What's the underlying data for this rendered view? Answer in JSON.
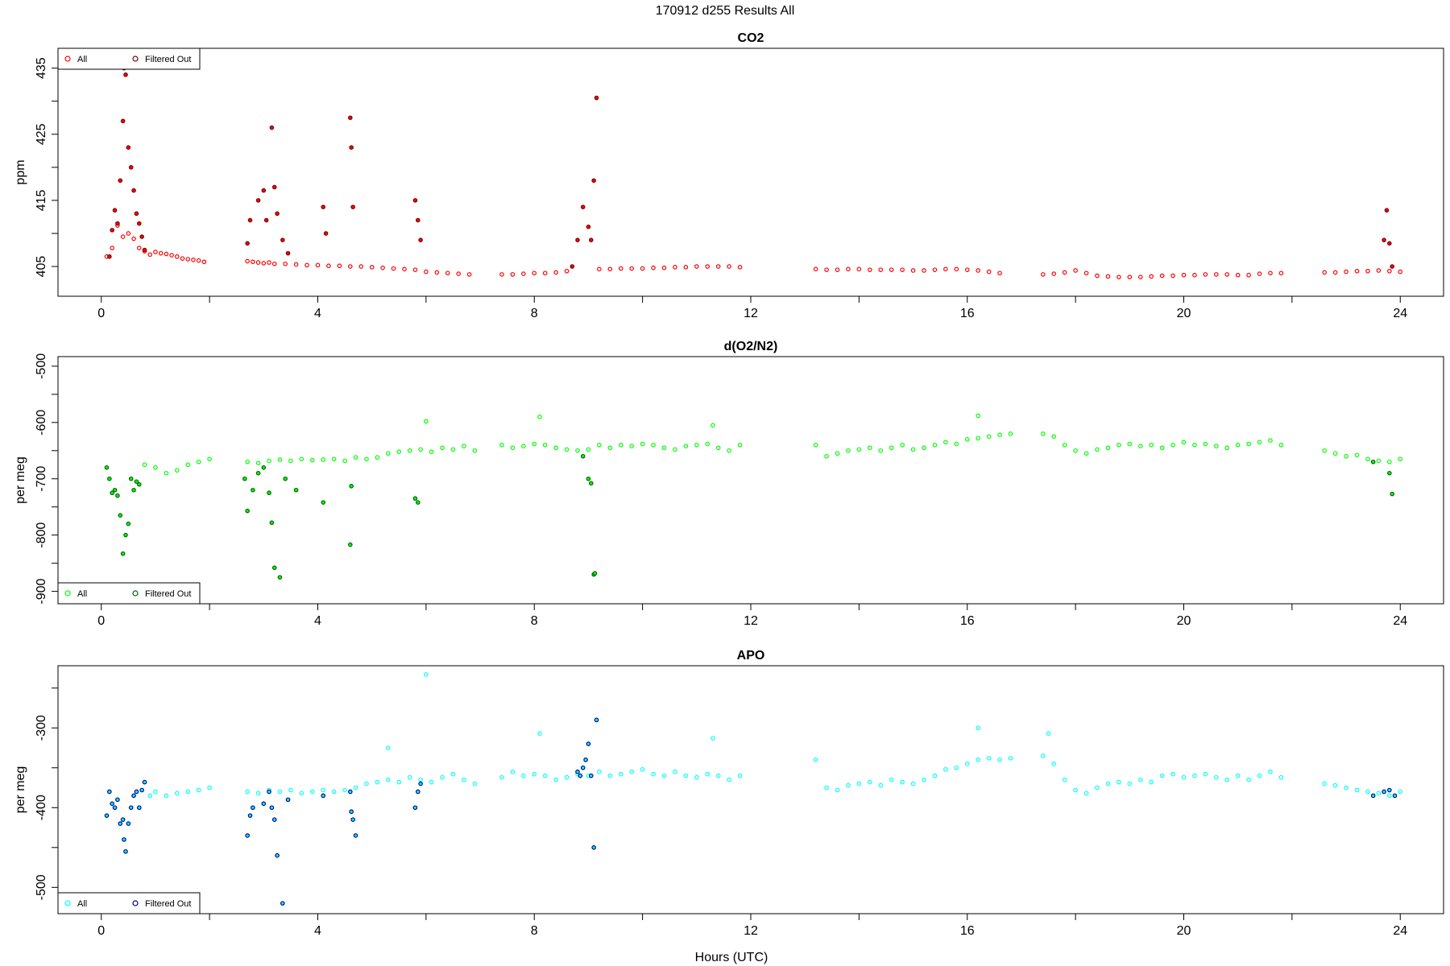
{
  "page": {
    "title": "170912   d255   Results All"
  },
  "xaxis": {
    "label": "Hours (UTC)",
    "range": [
      0,
      24
    ],
    "ticks": [
      "0",
      "4",
      "8",
      "12",
      "16",
      "20",
      "24"
    ]
  },
  "chart_data": [
    {
      "type": "scatter",
      "title": "CO2",
      "ylabel": "ppm",
      "xlim": [
        -0.8,
        24.8
      ],
      "ylim": [
        400.5,
        438
      ],
      "yticks": [
        405,
        415,
        425,
        435
      ],
      "ytick_labels": [
        "405",
        "415",
        "425",
        "435"
      ],
      "legend": {
        "position": "top-left",
        "entries": [
          "All",
          "Filtered Out"
        ]
      },
      "colors": {
        "all": "#ff0000",
        "filtered": "#7a0000"
      },
      "series": [
        {
          "name": "All",
          "x": [
            0.1,
            0.2,
            0.3,
            0.4,
            0.5,
            0.6,
            0.7,
            0.8,
            0.9,
            1.0,
            1.1,
            1.2,
            1.3,
            1.4,
            1.5,
            1.6,
            1.7,
            1.8,
            1.9,
            2.7,
            2.8,
            2.9,
            3.0,
            3.1,
            3.2,
            3.4,
            3.6,
            3.8,
            4.0,
            4.2,
            4.4,
            4.6,
            4.8,
            5.0,
            5.2,
            5.4,
            5.6,
            5.8,
            6.0,
            6.2,
            6.4,
            6.6,
            6.8,
            7.4,
            7.6,
            7.8,
            8.0,
            8.2,
            8.4,
            8.6,
            9.2,
            9.4,
            9.6,
            9.8,
            10.0,
            10.2,
            10.4,
            10.6,
            10.8,
            11.0,
            11.2,
            11.4,
            11.6,
            11.8,
            13.2,
            13.4,
            13.6,
            13.8,
            14.0,
            14.2,
            14.4,
            14.6,
            14.8,
            15.0,
            15.2,
            15.4,
            15.6,
            15.8,
            16.0,
            16.2,
            16.4,
            16.6,
            17.4,
            17.6,
            17.8,
            18.0,
            18.2,
            18.4,
            18.6,
            18.8,
            19.0,
            19.2,
            19.4,
            19.6,
            19.8,
            20.0,
            20.2,
            20.4,
            20.6,
            20.8,
            21.0,
            21.2,
            21.4,
            21.6,
            21.8,
            22.6,
            22.8,
            23.0,
            23.2,
            23.4,
            23.6,
            23.8,
            24.0
          ],
          "y": [
            406.5,
            407.8,
            411.2,
            409.5,
            410.0,
            409.2,
            407.8,
            407.3,
            406.8,
            407.2,
            407.0,
            406.9,
            406.7,
            406.5,
            406.2,
            406.1,
            406.0,
            405.9,
            405.7,
            405.8,
            405.7,
            405.6,
            405.5,
            405.6,
            405.4,
            405.4,
            405.3,
            405.2,
            405.2,
            405.1,
            405.1,
            405.0,
            405.0,
            404.9,
            404.8,
            404.7,
            404.6,
            404.5,
            404.2,
            404.1,
            404.0,
            403.9,
            403.8,
            403.8,
            403.8,
            403.9,
            404.0,
            404.0,
            404.1,
            404.3,
            404.6,
            404.6,
            404.7,
            404.7,
            404.7,
            404.8,
            404.8,
            404.9,
            404.9,
            405.0,
            405.0,
            405.0,
            405.0,
            404.9,
            404.6,
            404.5,
            404.5,
            404.6,
            404.6,
            404.5,
            404.5,
            404.5,
            404.5,
            404.4,
            404.4,
            404.5,
            404.6,
            404.6,
            404.5,
            404.4,
            404.2,
            404.0,
            403.8,
            403.9,
            404.1,
            404.4,
            404.0,
            403.6,
            403.5,
            403.4,
            403.4,
            403.4,
            403.5,
            403.6,
            403.6,
            403.7,
            403.7,
            403.8,
            403.8,
            403.8,
            403.7,
            403.7,
            403.9,
            404.0,
            404.0,
            404.1,
            404.1,
            404.2,
            404.3,
            404.3,
            404.4,
            404.3,
            404.2
          ]
        },
        {
          "name": "Filtered Out",
          "x": [
            0.15,
            0.2,
            0.25,
            0.3,
            0.35,
            0.4,
            0.42,
            0.45,
            0.5,
            0.55,
            0.6,
            0.65,
            0.7,
            0.75,
            0.8,
            2.7,
            2.75,
            2.9,
            3.0,
            3.05,
            3.15,
            3.2,
            3.25,
            3.35,
            3.45,
            4.1,
            4.15,
            4.6,
            4.62,
            4.65,
            5.8,
            5.85,
            5.9,
            8.7,
            8.8,
            8.9,
            9.0,
            9.05,
            9.1,
            9.15,
            23.7,
            23.75,
            23.8,
            23.85
          ],
          "y": [
            406.5,
            410.5,
            413.5,
            411.5,
            418.0,
            427.0,
            435.0,
            434.0,
            423.0,
            420.0,
            416.5,
            413.0,
            411.5,
            409.5,
            407.5,
            408.5,
            412.0,
            415.0,
            416.5,
            412.0,
            426.0,
            417.0,
            413.0,
            409.0,
            407.0,
            414.0,
            410.0,
            427.5,
            423.0,
            414.0,
            415.0,
            412.0,
            409.0,
            405.0,
            409.0,
            414.0,
            411.0,
            409.0,
            418.0,
            430.5,
            409.0,
            413.5,
            408.5,
            405.0
          ]
        }
      ]
    },
    {
      "type": "scatter",
      "title": "d(O2/N2)",
      "ylabel": "per meg",
      "xlim": [
        -0.8,
        24.8
      ],
      "ylim": [
        -922,
        -483
      ],
      "yticks": [
        -900,
        -800,
        -700,
        -600,
        -500
      ],
      "ytick_labels": [
        "-900",
        "-800",
        "-700",
        "-600",
        "-500"
      ],
      "legend": {
        "position": "bottom-left",
        "entries": [
          "All",
          "Filtered Out"
        ]
      },
      "colors": {
        "all": "#00ff00",
        "filtered": "#006400"
      },
      "series": [
        {
          "name": "All",
          "x": [
            0.8,
            1.0,
            1.2,
            1.4,
            1.6,
            1.8,
            2.0,
            2.7,
            2.9,
            3.1,
            3.3,
            3.5,
            3.7,
            3.9,
            4.1,
            4.3,
            4.5,
            4.7,
            4.9,
            5.1,
            5.3,
            5.5,
            5.7,
            5.9,
            6.1,
            6.3,
            6.5,
            6.7,
            6.9,
            7.4,
            7.6,
            7.8,
            8.0,
            8.2,
            8.4,
            8.6,
            8.8,
            9.0,
            9.2,
            9.4,
            9.6,
            9.8,
            10.0,
            10.2,
            10.4,
            10.6,
            10.8,
            11.0,
            11.2,
            11.4,
            11.6,
            11.8,
            13.2,
            13.4,
            13.6,
            13.8,
            14.0,
            14.2,
            14.4,
            14.6,
            14.8,
            15.0,
            15.2,
            15.4,
            15.6,
            15.8,
            16.0,
            16.2,
            16.4,
            16.6,
            16.8,
            17.4,
            17.6,
            17.8,
            18.0,
            18.2,
            18.4,
            18.6,
            18.8,
            19.0,
            19.2,
            19.4,
            19.6,
            19.8,
            20.0,
            20.2,
            20.4,
            20.6,
            20.8,
            21.0,
            21.2,
            21.4,
            21.6,
            21.8,
            22.6,
            22.8,
            23.0,
            23.2,
            23.4,
            23.6,
            23.8,
            24.0,
            6.0,
            8.1,
            11.3,
            16.2
          ],
          "y": [
            -675,
            -680,
            -690,
            -685,
            -675,
            -670,
            -665,
            -670,
            -672,
            -668,
            -666,
            -668,
            -665,
            -667,
            -666,
            -665,
            -668,
            -662,
            -665,
            -662,
            -655,
            -652,
            -650,
            -648,
            -652,
            -645,
            -648,
            -642,
            -650,
            -640,
            -645,
            -642,
            -638,
            -640,
            -645,
            -648,
            -650,
            -648,
            -640,
            -645,
            -640,
            -642,
            -638,
            -640,
            -645,
            -648,
            -642,
            -640,
            -638,
            -645,
            -650,
            -640,
            -640,
            -660,
            -655,
            -650,
            -648,
            -645,
            -650,
            -645,
            -640,
            -648,
            -645,
            -640,
            -635,
            -638,
            -630,
            -628,
            -625,
            -622,
            -620,
            -620,
            -625,
            -640,
            -650,
            -655,
            -648,
            -645,
            -640,
            -638,
            -642,
            -640,
            -645,
            -640,
            -635,
            -640,
            -638,
            -642,
            -645,
            -640,
            -638,
            -635,
            -632,
            -640,
            -650,
            -655,
            -660,
            -658,
            -665,
            -668,
            -670,
            -665,
            -598,
            -590,
            -605,
            -588
          ]
        },
        {
          "name": "Filtered Out",
          "x": [
            0.1,
            0.15,
            0.2,
            0.25,
            0.3,
            0.35,
            0.4,
            0.42,
            0.45,
            0.5,
            0.55,
            0.6,
            0.65,
            0.7,
            2.65,
            2.7,
            2.8,
            2.9,
            3.0,
            3.1,
            3.15,
            3.2,
            3.3,
            3.4,
            3.6,
            4.1,
            4.6,
            4.62,
            5.8,
            5.85,
            8.9,
            9.0,
            9.05,
            9.1,
            9.12,
            23.5,
            23.8,
            23.85
          ],
          "y": [
            -680,
            -700,
            -725,
            -720,
            -730,
            -765,
            -833,
            -890,
            -800,
            -780,
            -700,
            -720,
            -705,
            -710,
            -700,
            -757,
            -720,
            -690,
            -680,
            -725,
            -778,
            -858,
            -875,
            -700,
            -720,
            -742,
            -817,
            -713,
            -735,
            -742,
            -660,
            -700,
            -708,
            -870,
            -868,
            -670,
            -690,
            -727
          ]
        }
      ]
    },
    {
      "type": "scatter",
      "title": "APO",
      "ylabel": "per meg",
      "xlim": [
        -0.8,
        24.8
      ],
      "ylim": [
        -533,
        -222
      ],
      "yticks": [
        -500,
        -400,
        -300
      ],
      "ytick_labels": [
        "-500",
        "-400",
        "-300"
      ],
      "legend": {
        "position": "bottom-left",
        "entries": [
          "All",
          "Filtered Out"
        ]
      },
      "colors": {
        "all": "#00ffff",
        "filtered": "#00008b"
      },
      "series": [
        {
          "name": "All",
          "x": [
            0.9,
            1.0,
            1.2,
            1.4,
            1.6,
            1.8,
            2.0,
            2.7,
            2.9,
            3.1,
            3.3,
            3.5,
            3.7,
            3.9,
            4.1,
            4.3,
            4.5,
            4.7,
            4.9,
            5.1,
            5.3,
            5.5,
            5.7,
            5.9,
            6.1,
            6.3,
            6.5,
            6.7,
            6.9,
            7.4,
            7.6,
            7.8,
            8.0,
            8.2,
            8.4,
            8.6,
            8.8,
            9.0,
            9.2,
            9.4,
            9.6,
            9.8,
            10.0,
            10.2,
            10.4,
            10.6,
            10.8,
            11.0,
            11.2,
            11.4,
            11.6,
            11.8,
            13.2,
            13.4,
            13.6,
            13.8,
            14.0,
            14.2,
            14.4,
            14.6,
            14.8,
            15.0,
            15.2,
            15.4,
            15.6,
            15.8,
            16.0,
            16.2,
            16.4,
            16.6,
            16.8,
            17.4,
            17.6,
            17.8,
            18.0,
            18.2,
            18.4,
            18.6,
            18.8,
            19.0,
            19.2,
            19.4,
            19.6,
            19.8,
            20.0,
            20.2,
            20.4,
            20.6,
            20.8,
            21.0,
            21.2,
            21.4,
            21.6,
            21.8,
            22.6,
            22.8,
            23.0,
            23.2,
            23.4,
            23.6,
            23.8,
            24.0,
            6.0,
            8.1,
            11.3,
            16.2,
            17.5,
            5.3
          ],
          "y": [
            -385,
            -380,
            -385,
            -382,
            -380,
            -378,
            -375,
            -380,
            -382,
            -378,
            -380,
            -378,
            -382,
            -380,
            -378,
            -380,
            -378,
            -375,
            -370,
            -368,
            -365,
            -368,
            -362,
            -365,
            -368,
            -362,
            -358,
            -365,
            -370,
            -362,
            -355,
            -360,
            -358,
            -360,
            -365,
            -362,
            -358,
            -360,
            -355,
            -360,
            -358,
            -355,
            -352,
            -358,
            -360,
            -355,
            -360,
            -362,
            -358,
            -360,
            -365,
            -360,
            -340,
            -375,
            -378,
            -372,
            -370,
            -368,
            -372,
            -365,
            -368,
            -370,
            -365,
            -360,
            -352,
            -350,
            -345,
            -340,
            -338,
            -340,
            -338,
            -335,
            -345,
            -365,
            -378,
            -382,
            -375,
            -370,
            -368,
            -370,
            -365,
            -368,
            -360,
            -358,
            -362,
            -360,
            -358,
            -362,
            -365,
            -360,
            -365,
            -360,
            -355,
            -362,
            -370,
            -372,
            -375,
            -378,
            -380,
            -382,
            -385,
            -380,
            -233,
            -307,
            -313,
            -300,
            -307,
            -325
          ]
        },
        {
          "name": "Filtered Out",
          "x": [
            0.1,
            0.15,
            0.2,
            0.25,
            0.3,
            0.35,
            0.4,
            0.42,
            0.45,
            0.5,
            0.55,
            0.6,
            0.65,
            0.7,
            0.75,
            0.8,
            2.7,
            2.75,
            2.8,
            3.0,
            3.1,
            3.15,
            3.2,
            3.25,
            3.35,
            3.45,
            4.1,
            4.6,
            4.62,
            4.65,
            4.7,
            5.8,
            5.85,
            5.9,
            8.8,
            8.85,
            8.9,
            8.95,
            9.0,
            9.05,
            9.1,
            9.15,
            23.5,
            23.7,
            23.8,
            23.9
          ],
          "y": [
            -410,
            -380,
            -395,
            -400,
            -390,
            -420,
            -415,
            -440,
            -455,
            -420,
            -400,
            -385,
            -380,
            -400,
            -378,
            -368,
            -435,
            -410,
            -400,
            -395,
            -380,
            -400,
            -415,
            -460,
            -520,
            -390,
            -385,
            -380,
            -405,
            -415,
            -435,
            -400,
            -380,
            -370,
            -355,
            -360,
            -350,
            -340,
            -320,
            -360,
            -450,
            -290,
            -385,
            -380,
            -378,
            -385
          ]
        }
      ]
    }
  ]
}
